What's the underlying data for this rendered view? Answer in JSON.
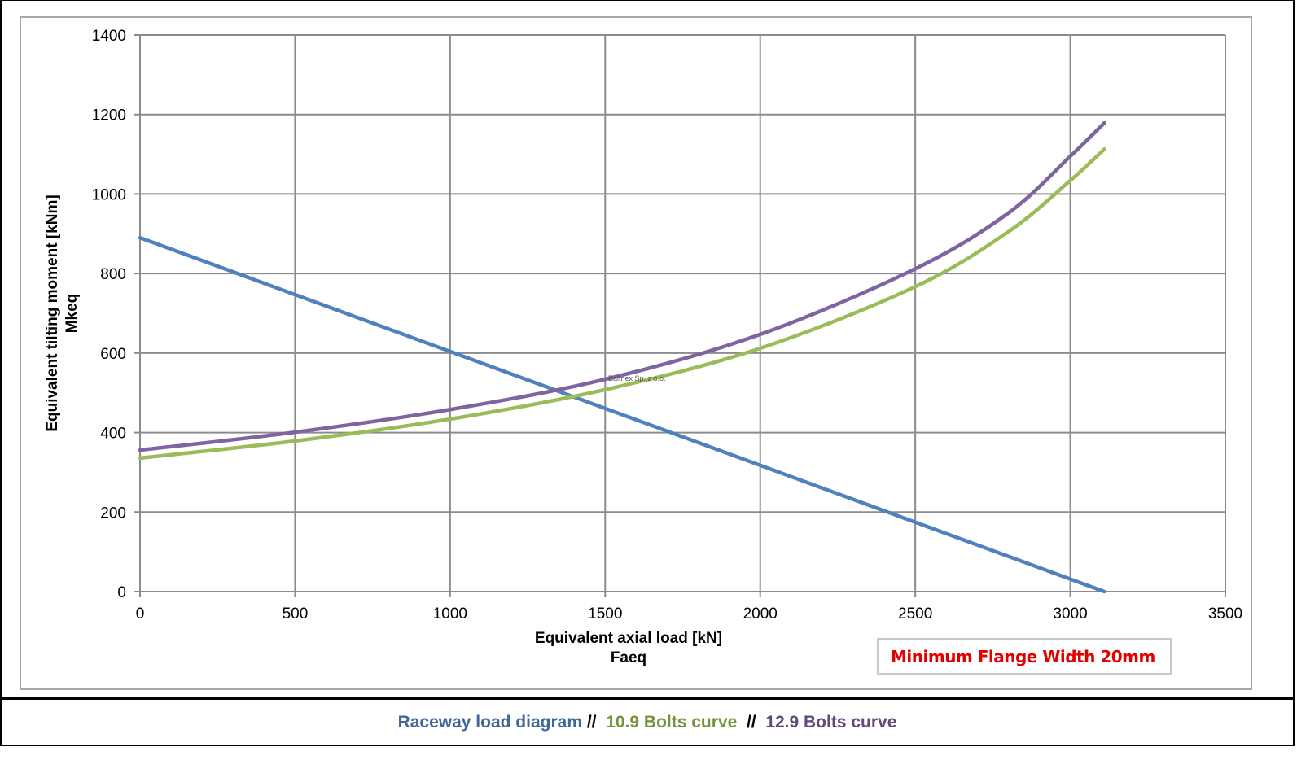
{
  "chart_data": {
    "type": "line",
    "title": "",
    "xlabel": "Equivalent axial load [kN]",
    "xlabel_sub": "Faeq",
    "ylabel": "Equivalent tilting moment [kNm]",
    "ylabel_sub": "Mkeq",
    "xlim": [
      0,
      3500
    ],
    "ylim": [
      0,
      1400
    ],
    "x_ticks": [
      0,
      500,
      1000,
      1500,
      2000,
      2500,
      3000,
      3500
    ],
    "y_ticks": [
      0,
      200,
      400,
      600,
      800,
      1000,
      1200,
      1400
    ],
    "grid": true,
    "series": [
      {
        "name": "Raceway load diagram",
        "color": "#4f81bd",
        "x": [
          0,
          3110
        ],
        "y": [
          890,
          0
        ]
      },
      {
        "name": "10.9 Bolts curve",
        "color": "#9bbb59",
        "x": [
          0,
          500,
          1000,
          1500,
          2000,
          2500,
          2800,
          3000,
          3110
        ],
        "y": [
          336,
          379,
          434,
          508,
          612,
          767,
          905,
          1034,
          1113
        ]
      },
      {
        "name": "12.9 Bolts curve",
        "color": "#8064a2",
        "x": [
          0,
          500,
          1000,
          1500,
          2000,
          2500,
          2800,
          3000,
          3110
        ],
        "y": [
          356,
          401,
          458,
          534,
          647,
          812,
          952,
          1095,
          1179
        ]
      }
    ],
    "annotations": {
      "watermark": "Baltnex Sp. z o.o.",
      "note": "Minimum Flange Width 20mm"
    }
  },
  "caption": {
    "parts": [
      {
        "text": "Raceway load diagram",
        "color": "#41679a"
      },
      {
        "text": " //  ",
        "color": "#000000"
      },
      {
        "text": "10.9 Bolts curve",
        "color": "#76923c"
      },
      {
        "text": "  //  ",
        "color": "#000000"
      },
      {
        "text": "12.9 Bolts curve",
        "color": "#604a7b"
      }
    ]
  }
}
